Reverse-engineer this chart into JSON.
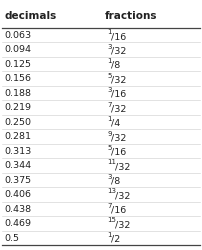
{
  "headers": [
    "decimals",
    "fractions"
  ],
  "decimals": [
    "0.063",
    "0.094",
    "0.125",
    "0.156",
    "0.188",
    "0.219",
    "0.250",
    "0.281",
    "0.313",
    "0.344",
    "0.375",
    "0.406",
    "0.438",
    "0.469",
    "0.5"
  ],
  "fractions_num": [
    "1",
    "3",
    "1",
    "5",
    "3",
    "7",
    "1",
    "9",
    "5",
    "11",
    "3",
    "13",
    "7",
    "15",
    "1"
  ],
  "fractions_den": [
    "16",
    "32",
    "8",
    "32",
    "16",
    "32",
    "4",
    "32",
    "16",
    "32",
    "8",
    "32",
    "16",
    "32",
    "2"
  ],
  "bg_color": "#ffffff",
  "header_line_color": "#444444",
  "row_line_color": "#cccccc",
  "text_color": "#222222",
  "header_font_size": 7.5,
  "row_font_size": 6.8
}
